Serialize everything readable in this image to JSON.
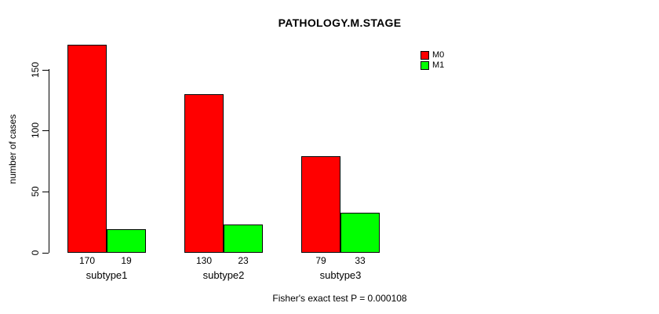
{
  "chart_data": {
    "type": "bar",
    "title": "PATHOLOGY.M.STAGE",
    "categories": [
      "subtype1",
      "subtype2",
      "subtype3"
    ],
    "series": [
      {
        "name": "M0",
        "color": "#ff0000",
        "values": [
          170,
          130,
          79
        ]
      },
      {
        "name": "M1",
        "color": "#00ff00",
        "values": [
          19,
          23,
          33
        ]
      }
    ],
    "ylabel": "number of cases",
    "yticks": [
      0,
      50,
      100,
      150
    ],
    "ylim": [
      0,
      177
    ],
    "grid": false,
    "legend_position": "topright",
    "value_labels_shown": true,
    "annotation": "Fisher's exact test P = 0.000108",
    "axis_color": "#000000",
    "bar_border_color": "#000000",
    "background": "#ffffff"
  }
}
